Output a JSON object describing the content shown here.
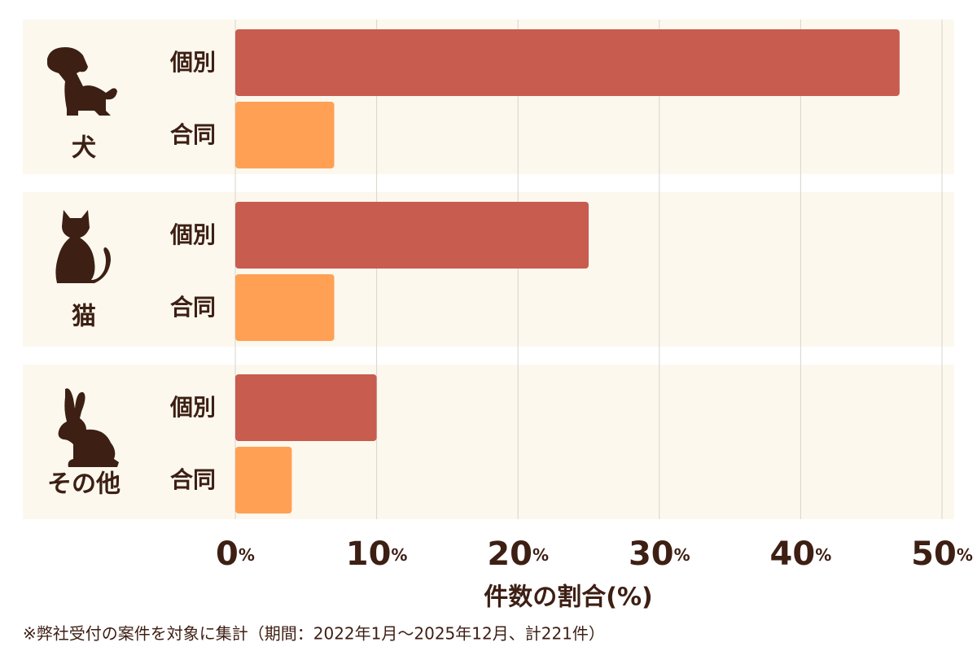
{
  "chart_data": {
    "type": "bar",
    "orientation": "horizontal",
    "categories": [
      "犬",
      "猫",
      "その他"
    ],
    "series": [
      {
        "name": "個別",
        "color": "#c85c4f",
        "values": [
          47,
          25,
          10
        ]
      },
      {
        "name": "合同",
        "color": "#ffa055",
        "values": [
          7,
          7,
          4
        ]
      }
    ],
    "xlim": [
      0,
      50
    ],
    "xticks": [
      {
        "value": 0,
        "label": "0%"
      },
      {
        "value": 10,
        "label": "10%"
      },
      {
        "value": 20,
        "label": "20%"
      },
      {
        "value": 30,
        "label": "30%"
      },
      {
        "value": 40,
        "label": "40%"
      },
      {
        "value": 50,
        "label": "50%"
      }
    ],
    "xlabel": "件数の割合(%)",
    "grid": true,
    "footnote": "※弊社受付の案件を対象に集計（期間：2022年1月～2025年12月、計221件）"
  }
}
